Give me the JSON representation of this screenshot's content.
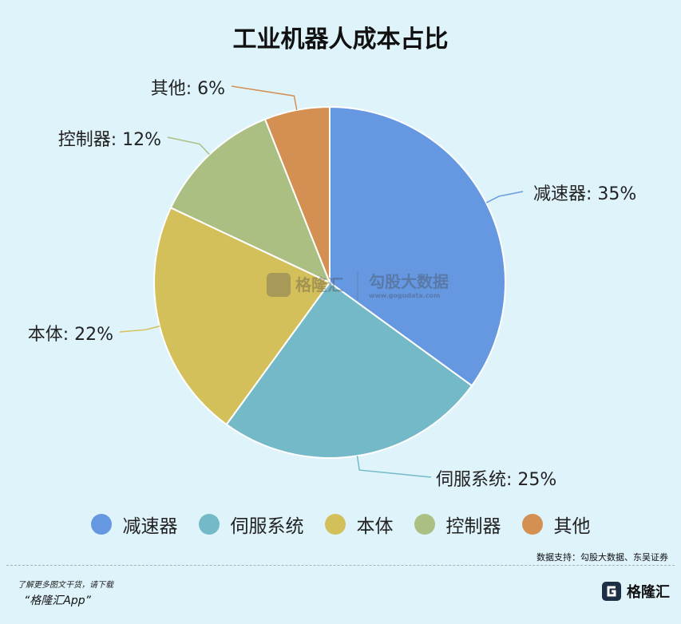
{
  "chart_data": {
    "type": "pie",
    "title": "工业机器人成本占比",
    "slices": [
      {
        "name": "减速器",
        "value": 35,
        "label": "减速器: 35%",
        "color": "#6598e1"
      },
      {
        "name": "伺服系统",
        "value": 25,
        "label": "伺服系统: 25%",
        "color": "#74b9c7"
      },
      {
        "name": "本体",
        "value": 22,
        "label": "本体: 22%",
        "color": "#d4c05a"
      },
      {
        "name": "控制器",
        "value": 12,
        "label": "控制器: 12%",
        "color": "#acbf82"
      },
      {
        "name": "其他",
        "value": 6,
        "label": "其他: 6%",
        "color": "#d49053"
      }
    ],
    "legend_position": "bottom"
  },
  "watermark": {
    "brand": "格隆汇",
    "partner": "勾股大数据",
    "partner_url": "www.gogudata.com"
  },
  "footer": {
    "source": "数据支持：勾股大数据、东吴证券",
    "promo_line": "了解更多图文干货，请下载",
    "promo_app": "“格隆汇App”",
    "brand_name": "格隆汇"
  }
}
